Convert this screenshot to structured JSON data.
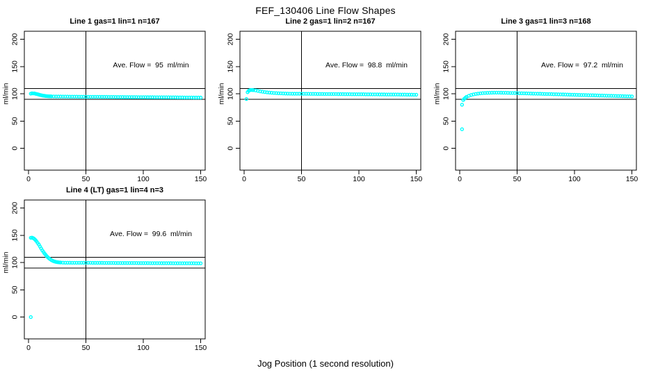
{
  "figure": {
    "title": "FEF_130406  Line Flow Shapes",
    "x_axis_label": "Jog Position (1 second resolution)"
  },
  "colors": {
    "points": "#00FFFF",
    "axis": "#000000",
    "background": "#FFFFFF"
  },
  "chart_data": [
    {
      "type": "scatter",
      "title": "Line 1 gas=1 lin=1 n=167",
      "annotation": "Ave. Flow =  95  ml/min",
      "ave_flow_ml_min": 95,
      "ylabel": "ml/min",
      "x_ticks": [
        0,
        50,
        100,
        150
      ],
      "y_ticks": [
        0,
        50,
        100,
        150,
        200
      ],
      "xlim": [
        -4,
        154
      ],
      "ylim": [
        -40,
        215
      ],
      "grid": false,
      "ref_lines_h": [
        110,
        90
      ],
      "ref_lines_v": [
        50
      ],
      "marker": "open-circle",
      "points": [
        [
          2,
          100.3
        ],
        [
          3,
          101
        ],
        [
          4,
          100.6
        ],
        [
          5,
          100.9
        ],
        [
          6,
          100.2
        ],
        [
          7,
          99.8
        ],
        [
          8,
          99.2
        ],
        [
          9,
          98.6
        ],
        [
          10,
          98
        ],
        [
          11,
          97.5
        ],
        [
          12,
          97
        ],
        [
          13,
          96.6
        ],
        [
          14,
          96.3
        ],
        [
          15,
          96
        ],
        [
          16,
          95.8
        ],
        [
          17,
          95.6
        ],
        [
          18,
          95.5
        ],
        [
          19,
          95.4
        ],
        [
          20,
          95.3
        ],
        [
          22,
          95.2
        ],
        [
          24,
          95.1
        ],
        [
          26,
          95
        ],
        [
          28,
          95
        ],
        [
          30,
          94.9
        ],
        [
          32,
          94.9
        ],
        [
          34,
          94.9
        ],
        [
          36,
          94.8
        ],
        [
          38,
          94.8
        ],
        [
          40,
          94.8
        ],
        [
          42,
          94.8
        ],
        [
          44,
          94.7
        ],
        [
          46,
          94.7
        ],
        [
          48,
          94.7
        ],
        [
          50,
          94.6
        ],
        [
          52,
          94.6
        ],
        [
          54,
          94.6
        ],
        [
          56,
          94.5
        ],
        [
          58,
          94.5
        ],
        [
          60,
          94.5
        ],
        [
          62,
          94.5
        ],
        [
          64,
          94.4
        ],
        [
          66,
          94.4
        ],
        [
          68,
          94.4
        ],
        [
          70,
          94.3
        ],
        [
          72,
          94.3
        ],
        [
          74,
          94.3
        ],
        [
          76,
          94.2
        ],
        [
          78,
          94.2
        ],
        [
          80,
          94.2
        ],
        [
          82,
          94.2
        ],
        [
          84,
          94.1
        ],
        [
          86,
          94.1
        ],
        [
          88,
          94.1
        ],
        [
          90,
          94
        ],
        [
          92,
          94
        ],
        [
          94,
          94
        ],
        [
          96,
          93.9
        ],
        [
          98,
          93.9
        ],
        [
          100,
          93.9
        ],
        [
          102,
          93.9
        ],
        [
          104,
          93.8
        ],
        [
          106,
          93.8
        ],
        [
          108,
          93.8
        ],
        [
          110,
          93.7
        ],
        [
          112,
          93.7
        ],
        [
          114,
          93.7
        ],
        [
          116,
          93.6
        ],
        [
          118,
          93.6
        ],
        [
          120,
          93.6
        ],
        [
          122,
          93.6
        ],
        [
          124,
          93.5
        ],
        [
          126,
          93.5
        ],
        [
          128,
          93.5
        ],
        [
          130,
          93.4
        ],
        [
          132,
          93.4
        ],
        [
          134,
          93.4
        ],
        [
          136,
          93.3
        ],
        [
          138,
          93.3
        ],
        [
          140,
          93.3
        ],
        [
          142,
          93.3
        ],
        [
          144,
          93.2
        ],
        [
          146,
          93.2
        ],
        [
          148,
          93.2
        ],
        [
          150,
          93.1
        ]
      ]
    },
    {
      "type": "scatter",
      "title": "Line 2 gas=1 lin=2 n=167",
      "annotation": "Ave. Flow =  98.8  ml/min",
      "ave_flow_ml_min": 98.8,
      "ylabel": "ml/min",
      "x_ticks": [
        0,
        50,
        100,
        150
      ],
      "y_ticks": [
        0,
        50,
        100,
        150,
        200
      ],
      "xlim": [
        -4,
        154
      ],
      "ylim": [
        -40,
        215
      ],
      "grid": false,
      "ref_lines_h": [
        110,
        90
      ],
      "ref_lines_v": [
        50
      ],
      "marker": "open-circle",
      "points": [
        [
          2,
          90.5
        ],
        [
          3,
          103
        ],
        [
          4,
          105.5
        ],
        [
          5,
          106.8
        ],
        [
          6,
          107
        ],
        [
          7,
          107
        ],
        [
          8,
          106.8
        ],
        [
          10,
          106.3
        ],
        [
          12,
          105.4
        ],
        [
          14,
          104.5
        ],
        [
          16,
          103.8
        ],
        [
          18,
          103.2
        ],
        [
          20,
          102.7
        ],
        [
          22,
          102.3
        ],
        [
          24,
          101.9
        ],
        [
          26,
          101.6
        ],
        [
          28,
          101.3
        ],
        [
          30,
          101.1
        ],
        [
          32,
          100.9
        ],
        [
          34,
          100.7
        ],
        [
          36,
          100.5
        ],
        [
          38,
          100.4
        ],
        [
          40,
          100.3
        ],
        [
          42,
          100.2
        ],
        [
          44,
          100.2
        ],
        [
          46,
          100.1
        ],
        [
          48,
          100.1
        ],
        [
          50,
          100.1
        ],
        [
          52,
          100
        ],
        [
          54,
          100
        ],
        [
          56,
          100
        ],
        [
          58,
          99.9
        ],
        [
          60,
          99.9
        ],
        [
          62,
          99.9
        ],
        [
          64,
          99.8
        ],
        [
          66,
          99.8
        ],
        [
          68,
          99.8
        ],
        [
          70,
          99.7
        ],
        [
          72,
          99.7
        ],
        [
          74,
          99.7
        ],
        [
          76,
          99.6
        ],
        [
          78,
          99.6
        ],
        [
          80,
          99.6
        ],
        [
          82,
          99.5
        ],
        [
          84,
          99.5
        ],
        [
          86,
          99.5
        ],
        [
          88,
          99.4
        ],
        [
          90,
          99.4
        ],
        [
          92,
          99.4
        ],
        [
          94,
          99.3
        ],
        [
          96,
          99.3
        ],
        [
          98,
          99.3
        ],
        [
          100,
          99.2
        ],
        [
          102,
          99.2
        ],
        [
          104,
          99.2
        ],
        [
          106,
          99.1
        ],
        [
          108,
          99.1
        ],
        [
          110,
          99.1
        ],
        [
          112,
          99
        ],
        [
          114,
          99
        ],
        [
          116,
          99
        ],
        [
          118,
          98.9
        ],
        [
          120,
          98.9
        ],
        [
          122,
          98.9
        ],
        [
          124,
          98.8
        ],
        [
          126,
          98.8
        ],
        [
          128,
          98.8
        ],
        [
          130,
          98.7
        ],
        [
          132,
          98.7
        ],
        [
          134,
          98.7
        ],
        [
          136,
          98.6
        ],
        [
          138,
          98.6
        ],
        [
          140,
          98.6
        ],
        [
          142,
          98.5
        ],
        [
          144,
          98.5
        ],
        [
          146,
          98.5
        ],
        [
          148,
          98.4
        ],
        [
          150,
          98.4
        ]
      ]
    },
    {
      "type": "scatter",
      "title": "Line 3 gas=1 lin=3 n=168",
      "annotation": "Ave. Flow =  97.2  ml/min",
      "ave_flow_ml_min": 97.2,
      "ylabel": "ml/min",
      "x_ticks": [
        0,
        50,
        100,
        150
      ],
      "y_ticks": [
        0,
        50,
        100,
        150,
        200
      ],
      "xlim": [
        -4,
        154
      ],
      "ylim": [
        -40,
        215
      ],
      "grid": false,
      "ref_lines_h": [
        110,
        90
      ],
      "ref_lines_v": [
        50
      ],
      "marker": "open-circle",
      "points": [
        [
          2,
          35
        ],
        [
          2,
          80
        ],
        [
          3,
          88.5
        ],
        [
          4,
          91
        ],
        [
          5,
          93
        ],
        [
          6,
          94.5
        ],
        [
          8,
          96.5
        ],
        [
          10,
          98
        ],
        [
          12,
          99
        ],
        [
          14,
          99.8
        ],
        [
          16,
          100.4
        ],
        [
          18,
          100.9
        ],
        [
          20,
          101.3
        ],
        [
          22,
          101.6
        ],
        [
          24,
          101.8
        ],
        [
          26,
          102
        ],
        [
          28,
          102.1
        ],
        [
          30,
          102.2
        ],
        [
          32,
          102.2
        ],
        [
          34,
          102.2
        ],
        [
          36,
          102.1
        ],
        [
          38,
          102
        ],
        [
          40,
          101.9
        ],
        [
          42,
          101.8
        ],
        [
          44,
          101.6
        ],
        [
          46,
          101.5
        ],
        [
          48,
          101.4
        ],
        [
          50,
          101.3
        ],
        [
          52,
          101.1
        ],
        [
          54,
          101
        ],
        [
          56,
          100.9
        ],
        [
          58,
          100.8
        ],
        [
          60,
          100.7
        ],
        [
          62,
          100.5
        ],
        [
          64,
          100.4
        ],
        [
          66,
          100.3
        ],
        [
          68,
          100.2
        ],
        [
          70,
          100.1
        ],
        [
          72,
          99.9
        ],
        [
          74,
          99.8
        ],
        [
          76,
          99.7
        ],
        [
          78,
          99.6
        ],
        [
          80,
          99.5
        ],
        [
          82,
          99.3
        ],
        [
          84,
          99.2
        ],
        [
          86,
          99.1
        ],
        [
          88,
          99
        ],
        [
          90,
          98.9
        ],
        [
          92,
          98.7
        ],
        [
          94,
          98.6
        ],
        [
          96,
          98.5
        ],
        [
          98,
          98.4
        ],
        [
          100,
          98.3
        ],
        [
          102,
          98.1
        ],
        [
          104,
          98
        ],
        [
          106,
          97.9
        ],
        [
          108,
          97.8
        ],
        [
          110,
          97.7
        ],
        [
          112,
          97.5
        ],
        [
          114,
          97.4
        ],
        [
          116,
          97.3
        ],
        [
          118,
          97.2
        ],
        [
          120,
          97.1
        ],
        [
          122,
          96.9
        ],
        [
          124,
          96.8
        ],
        [
          126,
          96.7
        ],
        [
          128,
          96.6
        ],
        [
          130,
          96.5
        ],
        [
          132,
          96.3
        ],
        [
          134,
          96.2
        ],
        [
          136,
          96.1
        ],
        [
          138,
          96
        ],
        [
          140,
          95.9
        ],
        [
          142,
          95.7
        ],
        [
          144,
          95.6
        ],
        [
          146,
          95.5
        ],
        [
          148,
          95.4
        ],
        [
          150,
          95.3
        ]
      ]
    },
    {
      "type": "scatter",
      "title": "Line 4 (LT) gas=1 lin=4 n=3",
      "annotation": "Ave. Flow =  99.6  ml/min",
      "ave_flow_ml_min": 99.6,
      "ylabel": "ml/min",
      "x_ticks": [
        0,
        50,
        100,
        150
      ],
      "y_ticks": [
        0,
        50,
        100,
        150,
        200
      ],
      "xlim": [
        -4,
        154
      ],
      "ylim": [
        -40,
        215
      ],
      "grid": false,
      "ref_lines_h": [
        110,
        90
      ],
      "ref_lines_v": [
        50
      ],
      "marker": "open-circle",
      "points": [
        [
          2,
          0
        ],
        [
          2,
          145.5
        ],
        [
          3,
          145.8
        ],
        [
          4,
          145
        ],
        [
          5,
          143.5
        ],
        [
          6,
          141.5
        ],
        [
          7,
          139
        ],
        [
          8,
          136
        ],
        [
          9,
          133
        ],
        [
          10,
          129.5
        ],
        [
          11,
          126
        ],
        [
          12,
          122.5
        ],
        [
          13,
          119.5
        ],
        [
          14,
          116.5
        ],
        [
          15,
          114
        ],
        [
          16,
          111.5
        ],
        [
          17,
          109.5
        ],
        [
          18,
          107.5
        ],
        [
          19,
          106
        ],
        [
          20,
          104.5
        ],
        [
          21,
          103.4
        ],
        [
          22,
          102.5
        ],
        [
          23,
          101.8
        ],
        [
          24,
          101.2
        ],
        [
          25,
          100.8
        ],
        [
          26,
          100.5
        ],
        [
          27,
          100.3
        ],
        [
          28,
          100.1
        ],
        [
          30,
          99.9
        ],
        [
          32,
          99.8
        ],
        [
          34,
          99.8
        ],
        [
          36,
          99.8
        ],
        [
          38,
          99.7
        ],
        [
          40,
          99.7
        ],
        [
          42,
          99.7
        ],
        [
          44,
          99.7
        ],
        [
          46,
          99.6
        ],
        [
          48,
          99.6
        ],
        [
          50,
          99.6
        ],
        [
          52,
          99.6
        ],
        [
          54,
          99.6
        ],
        [
          56,
          99.5
        ],
        [
          58,
          99.5
        ],
        [
          60,
          99.5
        ],
        [
          62,
          99.5
        ],
        [
          64,
          99.5
        ],
        [
          66,
          99.4
        ],
        [
          68,
          99.4
        ],
        [
          70,
          99.4
        ],
        [
          72,
          99.4
        ],
        [
          74,
          99.4
        ],
        [
          76,
          99.3
        ],
        [
          78,
          99.3
        ],
        [
          80,
          99.3
        ],
        [
          82,
          99.3
        ],
        [
          84,
          99.3
        ],
        [
          86,
          99.2
        ],
        [
          88,
          99.2
        ],
        [
          90,
          99.2
        ],
        [
          92,
          99.2
        ],
        [
          94,
          99.2
        ],
        [
          96,
          99.1
        ],
        [
          98,
          99.1
        ],
        [
          100,
          99.1
        ],
        [
          102,
          99.1
        ],
        [
          104,
          99.1
        ],
        [
          106,
          99
        ],
        [
          108,
          99
        ],
        [
          110,
          99
        ],
        [
          112,
          99
        ],
        [
          114,
          99
        ],
        [
          116,
          98.9
        ],
        [
          118,
          98.9
        ],
        [
          120,
          98.9
        ],
        [
          122,
          98.9
        ],
        [
          124,
          98.9
        ],
        [
          126,
          98.8
        ],
        [
          128,
          98.8
        ],
        [
          130,
          98.8
        ],
        [
          132,
          98.8
        ],
        [
          134,
          98.8
        ],
        [
          136,
          98.7
        ],
        [
          138,
          98.7
        ],
        [
          140,
          98.7
        ],
        [
          142,
          98.7
        ],
        [
          144,
          98.7
        ],
        [
          146,
          98.6
        ],
        [
          148,
          98.6
        ],
        [
          150,
          98.6
        ]
      ]
    }
  ]
}
